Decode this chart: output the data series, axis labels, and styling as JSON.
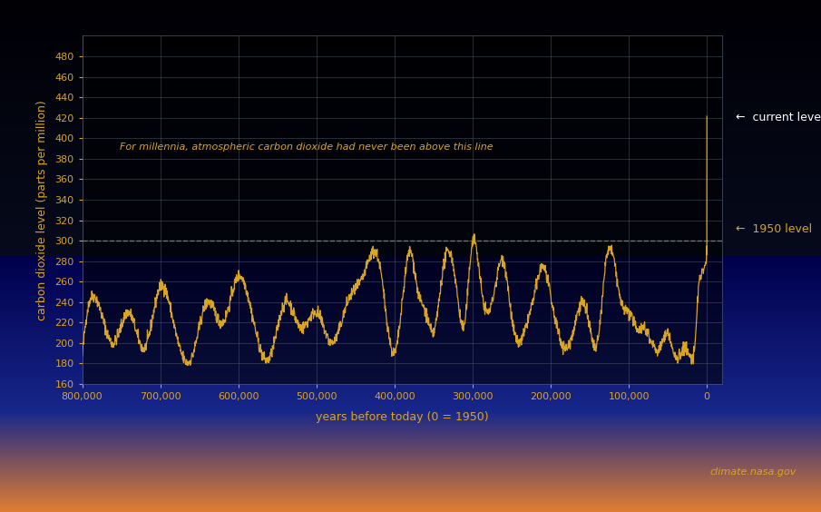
{
  "xlabel": "years before today (0 = 1950)",
  "ylabel": "carbon dioxide level (parts per million)",
  "annotation_text": "For millennia, atmospheric carbon dioxide had never been above this line",
  "current_level_label": "current level",
  "level_1950_label": "1950 level",
  "nasa_credit": "climate.nasa.gov",
  "xlim": [
    800000,
    -20000
  ],
  "ylim": [
    160,
    500
  ],
  "yticks": [
    160,
    180,
    200,
    220,
    240,
    260,
    280,
    300,
    320,
    340,
    360,
    380,
    400,
    420,
    440,
    460,
    480
  ],
  "xticks": [
    800000,
    700000,
    600000,
    500000,
    400000,
    300000,
    200000,
    100000,
    0
  ],
  "line_color": "#DAA520",
  "grid_color": "#4a5a6a",
  "text_color": "#DAA520",
  "background_color": "#000000",
  "reference_line_y": 300,
  "reference_line_color": "#888888",
  "current_level_y": 420,
  "level_1950_y": 311
}
